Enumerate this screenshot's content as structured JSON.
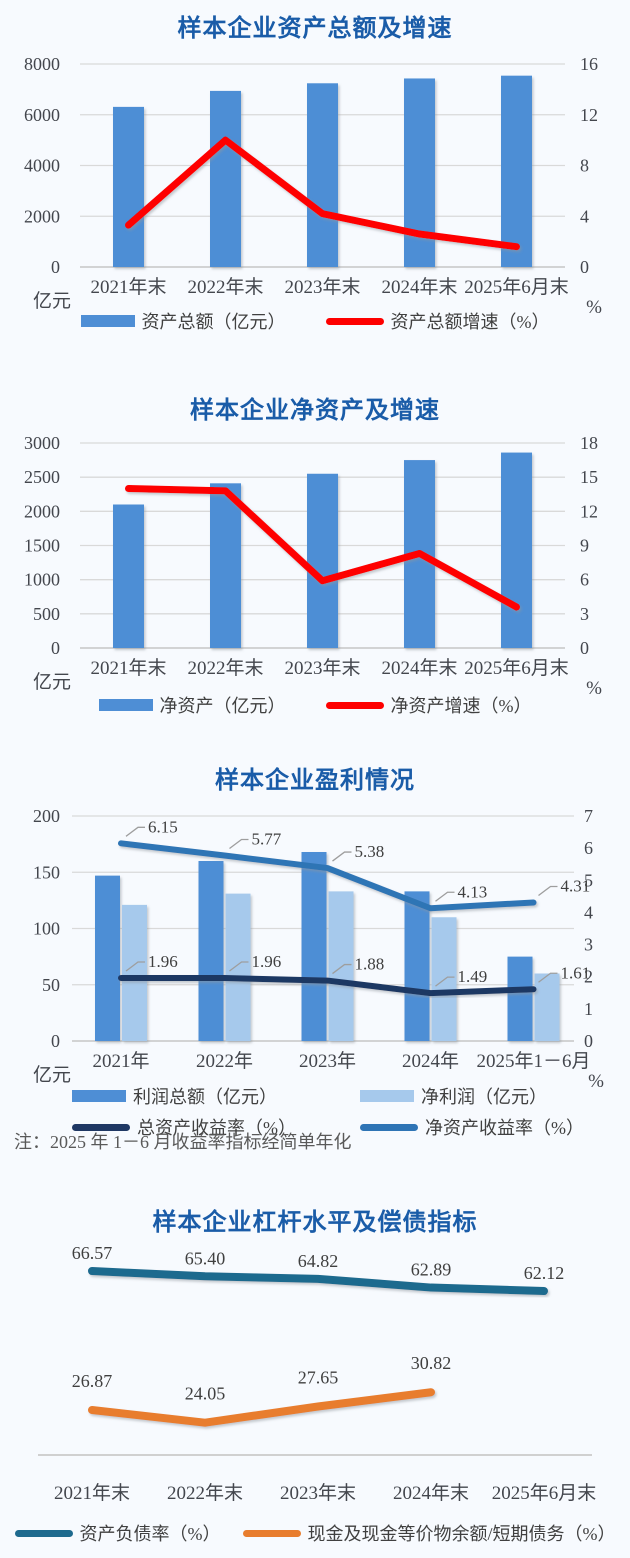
{
  "theme": {
    "background": "#F7FAFE",
    "title_color": "#1A5CA8",
    "text_color": "#43464D",
    "grid_color": "#D9D9D9",
    "note_color": "#595959"
  },
  "chart_data": [
    {
      "type": "bar",
      "subtype": "combo-bar-line-dual-axis",
      "title": "样本企业资产总额及增速",
      "categories": [
        "2021年末",
        "2022年末",
        "2023年末",
        "2024年末",
        "2025年6月末"
      ],
      "bar_series": [
        {
          "name": "资产总额（亿元）",
          "color": "#4E8ED5",
          "values": [
            6310,
            6940,
            7240,
            7430,
            7540
          ]
        }
      ],
      "line_series": [
        {
          "name": "资产总额增速（%）",
          "color": "#FE0000",
          "values": [
            3.3,
            10.0,
            4.2,
            2.6,
            1.6
          ]
        }
      ],
      "left_axis": {
        "unit": "亿元",
        "min": 0,
        "max": 8000,
        "ticks": [
          0,
          2000,
          4000,
          6000,
          8000
        ]
      },
      "right_axis": {
        "unit": "%",
        "min": 0,
        "max": 16,
        "ticks": [
          0,
          4,
          8,
          12,
          16
        ]
      },
      "grid": true,
      "legend_position": "bottom"
    },
    {
      "type": "bar",
      "subtype": "combo-bar-line-dual-axis",
      "title": "样本企业净资产及增速",
      "categories": [
        "2021年末",
        "2022年末",
        "2023年末",
        "2024年末",
        "2025年6月末"
      ],
      "bar_series": [
        {
          "name": "净资产（亿元）",
          "color": "#4E8ED5",
          "values": [
            2100,
            2410,
            2550,
            2750,
            2860
          ]
        }
      ],
      "line_series": [
        {
          "name": "净资产增速（%）",
          "color": "#FE0000",
          "values": [
            14.0,
            13.8,
            5.9,
            8.3,
            3.6
          ]
        }
      ],
      "left_axis": {
        "unit": "亿元",
        "min": 0,
        "max": 3000,
        "ticks": [
          0,
          500,
          1000,
          1500,
          2000,
          2500,
          3000
        ]
      },
      "right_axis": {
        "unit": "%",
        "min": 0,
        "max": 18,
        "ticks": [
          0,
          3,
          6,
          9,
          12,
          15,
          18
        ]
      },
      "grid": true,
      "legend_position": "bottom"
    },
    {
      "type": "bar",
      "subtype": "combo-double-bar-two-lines-dual-axis",
      "title": "样本企业盈利情况",
      "categories": [
        "2021年",
        "2022年",
        "2023年",
        "2024年",
        "2025年1－6月"
      ],
      "bar_series": [
        {
          "name": "利润总额（亿元）",
          "color": "#4E8ED5",
          "values": [
            147,
            160,
            168,
            133,
            75
          ]
        },
        {
          "name": "净利润（亿元）",
          "color": "#A6C9EC",
          "values": [
            121,
            131,
            133,
            110,
            60
          ]
        }
      ],
      "line_series": [
        {
          "name": "总资产收益率（%）",
          "color": "#1F3864",
          "values": [
            1.96,
            1.96,
            1.88,
            1.49,
            1.61
          ],
          "data_labels": true
        },
        {
          "name": "净资产收益率（%）",
          "color": "#2E74B5",
          "values": [
            6.15,
            5.77,
            5.38,
            4.13,
            4.31
          ],
          "data_labels": true
        }
      ],
      "left_axis": {
        "unit": "亿元",
        "min": 0,
        "max": 200,
        "ticks": [
          0,
          50,
          100,
          150,
          200
        ]
      },
      "right_axis": {
        "unit": "%",
        "min": 0,
        "max": 7,
        "ticks": [
          0,
          1,
          2,
          3,
          4,
          5,
          6,
          7
        ]
      },
      "grid": true,
      "legend_position": "bottom",
      "note": "注：2025 年 1－6 月收益率指标经简单年化"
    },
    {
      "type": "line",
      "subtype": "labelled-lines-no-axis",
      "title": "样本企业杠杆水平及偿债指标",
      "categories": [
        "2021年末",
        "2022年末",
        "2023年末",
        "2024年末",
        "2025年6月末"
      ],
      "line_series": [
        {
          "name": "资产负债率（%）",
          "color": "#1E6A8E",
          "values": [
            66.57,
            65.4,
            64.82,
            62.89,
            62.12
          ],
          "data_labels": true
        },
        {
          "name": "现金及现金等价物余额/短期债务（%）",
          "color": "#E87D2E",
          "values": [
            26.87,
            24.05,
            27.65,
            30.82,
            null
          ],
          "data_labels": true
        }
      ],
      "grid": false,
      "legend_position": "bottom"
    }
  ]
}
